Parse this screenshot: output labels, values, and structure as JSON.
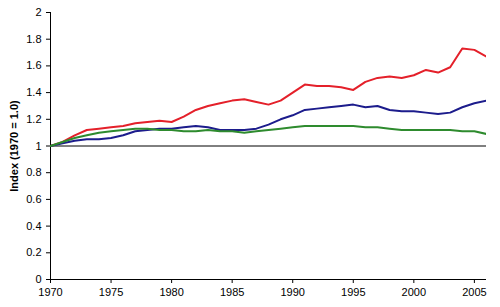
{
  "chart_data": {
    "type": "line",
    "y_label": "Index (1970 = 1.0)",
    "x": [
      1970,
      1971,
      1972,
      1973,
      1974,
      1975,
      1976,
      1977,
      1978,
      1979,
      1980,
      1981,
      1982,
      1983,
      1984,
      1985,
      1986,
      1987,
      1988,
      1989,
      1990,
      1991,
      1992,
      1993,
      1994,
      1995,
      1996,
      1997,
      1998,
      1999,
      2000,
      2001,
      2002,
      2003,
      2004,
      2005,
      2006
    ],
    "series": [
      {
        "color": "#e4202a",
        "values": [
          1.0,
          1.03,
          1.08,
          1.12,
          1.13,
          1.14,
          1.15,
          1.17,
          1.18,
          1.19,
          1.18,
          1.22,
          1.27,
          1.3,
          1.32,
          1.34,
          1.35,
          1.33,
          1.31,
          1.34,
          1.4,
          1.46,
          1.45,
          1.45,
          1.44,
          1.42,
          1.48,
          1.51,
          1.52,
          1.51,
          1.53,
          1.57,
          1.55,
          1.59,
          1.73,
          1.72,
          1.67
        ]
      },
      {
        "color": "#1c1c8c",
        "values": [
          1.0,
          1.02,
          1.04,
          1.05,
          1.05,
          1.06,
          1.08,
          1.11,
          1.12,
          1.13,
          1.13,
          1.14,
          1.15,
          1.14,
          1.12,
          1.12,
          1.12,
          1.13,
          1.16,
          1.2,
          1.23,
          1.27,
          1.28,
          1.29,
          1.3,
          1.31,
          1.29,
          1.3,
          1.27,
          1.26,
          1.26,
          1.25,
          1.24,
          1.25,
          1.29,
          1.32,
          1.34
        ]
      },
      {
        "color": "#2e8b2e",
        "values": [
          1.0,
          1.03,
          1.06,
          1.08,
          1.1,
          1.11,
          1.12,
          1.13,
          1.13,
          1.12,
          1.12,
          1.11,
          1.11,
          1.12,
          1.11,
          1.11,
          1.1,
          1.11,
          1.12,
          1.13,
          1.14,
          1.15,
          1.15,
          1.15,
          1.15,
          1.15,
          1.14,
          1.14,
          1.13,
          1.12,
          1.12,
          1.12,
          1.12,
          1.12,
          1.11,
          1.11,
          1.09
        ]
      }
    ],
    "reference_line": 1,
    "xlim": [
      1970,
      2006
    ],
    "xticks": [
      1970,
      1975,
      1980,
      1985,
      1990,
      1995,
      2000,
      2005
    ],
    "ylim": [
      0,
      2
    ],
    "yticks": [
      0,
      0.2,
      0.4,
      0.6,
      0.8,
      1,
      1.2,
      1.4,
      1.6,
      1.8,
      2
    ],
    "grid": false
  }
}
